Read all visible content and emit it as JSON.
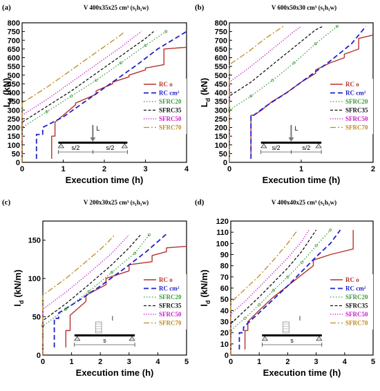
{
  "colors": {
    "RC o": "#b5312c",
    "RC cm2": "#1f1fc8",
    "SFRC20": "#3a9a3a",
    "SFRC35": "#111111",
    "SFRC50": "#c81ec8",
    "SFRC70": "#c08a1a"
  },
  "chart_data": [
    {
      "type": "line",
      "panel": "(a)",
      "title": "V 400x35x25 cm³ (s₁h₁w)",
      "xlabel": "Execution time (h)",
      "ylabel": "Ld (kN)",
      "ylabel_main": "L",
      "ylabel_sub": "d",
      "ylabel_unit": "(kN)",
      "xlim": [
        0,
        4
      ],
      "ylim": [
        0,
        800
      ],
      "xticks": [
        0,
        1,
        2,
        3,
        4
      ],
      "yticks": [
        0,
        50,
        100,
        150,
        200,
        250,
        300,
        350,
        400,
        450,
        500,
        550,
        600,
        650,
        700,
        750,
        800
      ],
      "legend_position": "right",
      "schematic": {
        "type": "point-load",
        "load_label": "L",
        "span_labels": [
          "s/2",
          "s/2"
        ]
      },
      "series": [
        {
          "name": "RC o",
          "x": [
            0.72,
            0.72,
            0.8,
            0.8,
            1.3,
            1.3,
            1.8,
            1.8,
            2.2,
            2.2,
            2.6,
            2.6,
            3.0,
            3.0,
            3.45,
            3.45,
            4.0
          ],
          "y": [
            20,
            150,
            150,
            230,
            330,
            340,
            390,
            410,
            450,
            460,
            490,
            500,
            530,
            540,
            560,
            650,
            660
          ]
        },
        {
          "name": "RC cm2",
          "x": [
            0.35,
            0.35,
            0.5,
            0.5,
            1.0,
            1.6,
            2.2,
            2.8,
            3.3,
            4.0
          ],
          "y": [
            20,
            160,
            160,
            200,
            260,
            360,
            460,
            560,
            650,
            750
          ]
        },
        {
          "name": "SFRC20",
          "x": [
            0.0,
            0.0,
            0.6,
            1.2,
            1.8,
            2.4,
            3.0,
            3.5
          ],
          "y": [
            0,
            200,
            290,
            380,
            470,
            570,
            670,
            750
          ]
        },
        {
          "name": "SFRC35",
          "x": [
            0.0,
            0.0,
            0.6,
            1.2,
            1.8,
            2.4,
            3.0,
            3.2
          ],
          "y": [
            0,
            230,
            320,
            410,
            510,
            610,
            710,
            750
          ]
        },
        {
          "name": "SFRC50",
          "x": [
            0.0,
            0.0,
            0.6,
            1.2,
            1.8,
            2.4,
            2.9
          ],
          "y": [
            0,
            270,
            360,
            460,
            560,
            660,
            750
          ]
        },
        {
          "name": "SFRC70",
          "x": [
            0.0,
            0.0,
            0.6,
            1.2,
            1.8,
            2.4,
            2.5
          ],
          "y": [
            0,
            340,
            430,
            530,
            630,
            730,
            750
          ]
        }
      ]
    },
    {
      "type": "line",
      "panel": "(b)",
      "title": "V 600x50x30 cm³ (s₁h₁w)",
      "xlabel": "Execution time (h)",
      "ylabel": "Ld (kN)",
      "ylabel_main": "L",
      "ylabel_sub": "d",
      "ylabel_unit": "(kN)",
      "xlim": [
        0,
        2
      ],
      "ylim": [
        0,
        800
      ],
      "xticks": [
        0,
        1,
        2
      ],
      "yticks": [
        0,
        50,
        100,
        150,
        200,
        250,
        300,
        350,
        400,
        450,
        500,
        550,
        600,
        650,
        700,
        750,
        800
      ],
      "legend_position": "right",
      "schematic": {
        "type": "point-load",
        "load_label": "L",
        "span_labels": [
          "s/2",
          "s/2"
        ]
      },
      "series": [
        {
          "name": "RC o",
          "x": [
            0.3,
            0.3,
            0.34,
            0.45,
            0.6,
            0.8,
            1.0,
            1.2,
            1.2,
            1.4,
            1.6,
            1.6,
            1.8,
            1.8,
            2.0
          ],
          "y": [
            20,
            270,
            270,
            300,
            350,
            400,
            460,
            510,
            530,
            570,
            600,
            620,
            650,
            710,
            730
          ]
        },
        {
          "name": "RC cm2",
          "x": [
            0.3,
            0.3,
            0.34,
            0.5,
            0.8,
            1.1,
            1.4,
            1.7,
            1.9
          ],
          "y": [
            20,
            270,
            270,
            320,
            400,
            490,
            580,
            680,
            780
          ]
        },
        {
          "name": "SFRC20",
          "x": [
            0.0,
            0.0,
            0.3,
            0.6,
            0.9,
            1.2,
            1.5
          ],
          "y": [
            0,
            300,
            380,
            470,
            570,
            680,
            780
          ]
        },
        {
          "name": "SFRC35",
          "x": [
            0.0,
            0.0,
            0.3,
            0.6,
            0.9,
            1.2,
            1.3
          ],
          "y": [
            0,
            380,
            460,
            560,
            660,
            760,
            780
          ]
        },
        {
          "name": "SFRC50",
          "x": [
            0.0,
            0.0,
            0.3,
            0.6,
            0.9,
            1.0
          ],
          "y": [
            0,
            460,
            550,
            650,
            750,
            780
          ]
        },
        {
          "name": "SFRC70",
          "x": [
            0.0,
            0.0,
            0.25,
            0.5,
            0.75
          ],
          "y": [
            0,
            560,
            630,
            710,
            780
          ]
        }
      ]
    },
    {
      "type": "line",
      "panel": "(c)",
      "title": "V 200x30x25 cm³ (s₁h₁w)",
      "xlabel": "Execution time (h)",
      "ylabel": "ld (kN/m)",
      "ylabel_main": "l",
      "ylabel_sub": "d",
      "ylabel_unit": "(kN/m)",
      "xlim": [
        0,
        5
      ],
      "ylim": [
        0,
        175
      ],
      "xticks": [
        0,
        1,
        2,
        3,
        4,
        5
      ],
      "yticks": [
        0,
        50,
        100,
        150
      ],
      "legend_position": "right",
      "schematic": {
        "type": "distributed-load",
        "load_label": "l",
        "span_labels": [
          "s"
        ]
      },
      "series": [
        {
          "name": "RC o",
          "x": [
            0.8,
            0.8,
            0.95,
            0.95,
            1.5,
            1.5,
            2.2,
            2.2,
            3.0,
            3.0,
            3.8,
            3.8,
            4.3,
            4.3,
            5.0
          ],
          "y": [
            10,
            32,
            32,
            52,
            70,
            78,
            92,
            100,
            110,
            118,
            122,
            130,
            135,
            140,
            142
          ]
        },
        {
          "name": "RC cm2",
          "x": [
            0.4,
            0.4,
            0.55,
            0.55,
            1.2,
            2.0,
            2.8,
            3.6,
            4.3
          ],
          "y": [
            10,
            48,
            48,
            55,
            70,
            90,
            112,
            135,
            158
          ]
        },
        {
          "name": "SFRC20",
          "x": [
            0.0,
            0.0,
            0.8,
            1.6,
            2.4,
            3.2,
            3.7
          ],
          "y": [
            0,
            38,
            60,
            83,
            108,
            133,
            157
          ]
        },
        {
          "name": "SFRC35",
          "x": [
            0.0,
            0.0,
            0.8,
            1.6,
            2.4,
            3.0,
            3.4
          ],
          "y": [
            0,
            45,
            67,
            92,
            118,
            140,
            157
          ]
        },
        {
          "name": "SFRC50",
          "x": [
            0.0,
            0.0,
            0.8,
            1.6,
            2.4,
            3.0
          ],
          "y": [
            0,
            60,
            82,
            107,
            133,
            157
          ]
        },
        {
          "name": "SFRC70",
          "x": [
            0.0,
            0.0,
            0.8,
            1.6,
            2.2,
            2.5
          ],
          "y": [
            0,
            78,
            100,
            125,
            145,
            157
          ]
        }
      ]
    },
    {
      "type": "line",
      "panel": "(d)",
      "title": "V 400x40x25 cm³ (s₁h₁w)",
      "xlabel": "Execution time (h)",
      "ylabel": "ld (kN/m)",
      "ylabel_main": "l",
      "ylabel_sub": "d",
      "ylabel_unit": "(kN/m)",
      "xlim": [
        0,
        5
      ],
      "ylim": [
        0,
        120
      ],
      "xticks": [
        0,
        1,
        2,
        3,
        4,
        5
      ],
      "yticks": [
        0,
        10,
        20,
        30,
        40,
        50,
        60,
        70,
        80,
        90,
        100,
        110,
        120
      ],
      "legend_position": "right",
      "schematic": {
        "type": "distributed-load",
        "load_label": "l",
        "span_labels": [
          "s"
        ]
      },
      "series": [
        {
          "name": "RC o",
          "x": [
            0.5,
            0.5,
            0.6,
            0.6,
            1.0,
            1.5,
            2.0,
            2.5,
            2.9,
            2.9,
            3.5,
            4.3,
            4.3
          ],
          "y": [
            5,
            22,
            22,
            30,
            40,
            52,
            62,
            72,
            80,
            85,
            90,
            95,
            112
          ]
        },
        {
          "name": "RC cm2",
          "x": [
            0.3,
            0.3,
            0.45,
            0.45,
            1.0,
            1.5,
            2.0,
            2.5,
            3.0,
            3.5,
            3.85
          ],
          "y": [
            5,
            20,
            20,
            25,
            38,
            50,
            62,
            75,
            88,
            100,
            112
          ]
        },
        {
          "name": "SFRC20",
          "x": [
            0.0,
            0.0,
            0.5,
            1.0,
            1.5,
            2.0,
            2.5,
            3.0,
            3.5
          ],
          "y": [
            0,
            22,
            33,
            45,
            58,
            70,
            83,
            98,
            112
          ]
        },
        {
          "name": "SFRC35",
          "x": [
            0.0,
            0.0,
            0.5,
            1.0,
            1.5,
            2.0,
            2.5,
            3.0
          ],
          "y": [
            0,
            28,
            40,
            52,
            65,
            78,
            93,
            112
          ]
        },
        {
          "name": "SFRC50",
          "x": [
            0.0,
            0.0,
            0.5,
            1.0,
            1.5,
            2.0,
            2.5,
            2.75
          ],
          "y": [
            0,
            37,
            48,
            61,
            74,
            87,
            102,
            112
          ]
        },
        {
          "name": "SFRC70",
          "x": [
            0.0,
            0.0,
            0.5,
            1.0,
            1.5,
            2.0,
            2.35
          ],
          "y": [
            0,
            47,
            59,
            71,
            85,
            100,
            112
          ]
        }
      ]
    }
  ]
}
